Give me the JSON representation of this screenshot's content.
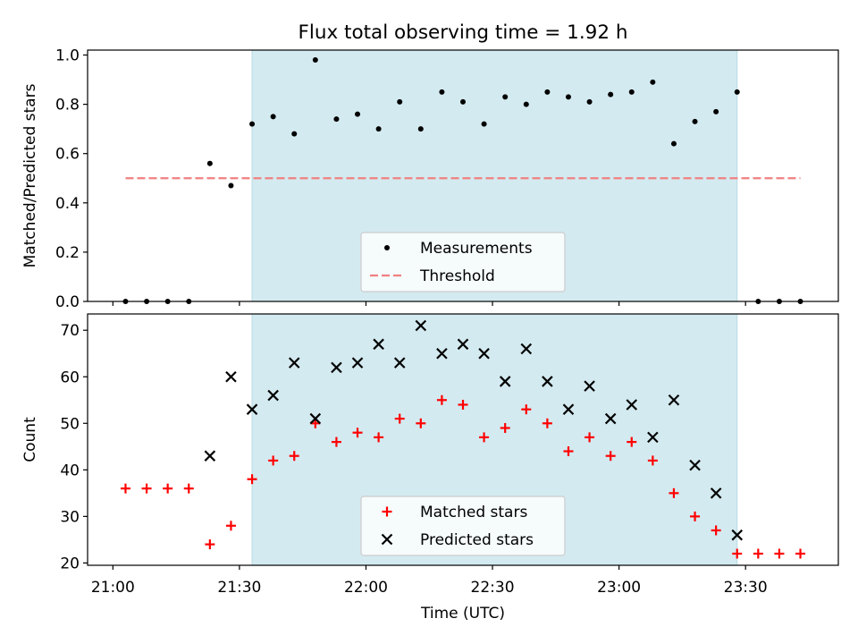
{
  "figure": {
    "title": "Flux total observing time = 1.92 h",
    "xlabel": "Time (UTC)"
  },
  "colors": {
    "band": "#d3eaf0",
    "measurements": "#000000",
    "threshold": "#f08080",
    "matched": "#ff0000",
    "predicted": "#000000"
  },
  "chart_data": [
    {
      "type": "scatter",
      "ylabel": "Matched/Predicted stars",
      "ylim": [
        0,
        1.02
      ],
      "yticks": [
        "0.0",
        "0.2",
        "0.4",
        "0.6",
        "0.8",
        "1.0"
      ],
      "xlim": [
        "20:54",
        "23:52"
      ],
      "xticks": [
        "21:00",
        "21:30",
        "22:00",
        "22:30",
        "23:00",
        "23:30"
      ],
      "shaded_interval": [
        "21:33",
        "23:28"
      ],
      "legend": {
        "placement": "lower center",
        "entries": [
          "Measurements",
          "Threshold"
        ]
      },
      "threshold": {
        "name": "Threshold",
        "y": 0.5,
        "x_range": [
          "21:03",
          "23:43"
        ]
      },
      "series": [
        {
          "name": "Measurements",
          "x": [
            "21:03",
            "21:08",
            "21:13",
            "21:18",
            "21:23",
            "21:28",
            "21:33",
            "21:38",
            "21:43",
            "21:48",
            "21:53",
            "21:58",
            "22:03",
            "22:08",
            "22:13",
            "22:18",
            "22:23",
            "22:28",
            "22:33",
            "22:38",
            "22:43",
            "22:48",
            "22:53",
            "22:58",
            "23:03",
            "23:08",
            "23:13",
            "23:18",
            "23:23",
            "23:28",
            "23:33",
            "23:38",
            "23:43"
          ],
          "y": [
            0.0,
            0.0,
            0.0,
            0.0,
            0.56,
            0.47,
            0.72,
            0.75,
            0.68,
            0.98,
            0.74,
            0.76,
            0.7,
            0.81,
            0.7,
            0.85,
            0.81,
            0.72,
            0.83,
            0.8,
            0.85,
            0.83,
            0.81,
            0.84,
            0.85,
            0.89,
            0.64,
            0.73,
            0.77,
            0.85,
            0.0,
            0.0,
            0.0
          ]
        }
      ]
    },
    {
      "type": "scatter",
      "ylabel": "Count",
      "ylim": [
        19.5,
        73.5
      ],
      "yticks": [
        "20",
        "30",
        "40",
        "50",
        "60",
        "70"
      ],
      "xlim": [
        "20:54",
        "23:52"
      ],
      "xticks": [
        "21:00",
        "21:30",
        "22:00",
        "22:30",
        "23:00",
        "23:30"
      ],
      "shaded_interval": [
        "21:33",
        "23:28"
      ],
      "legend": {
        "placement": "lower center",
        "entries": [
          "Matched stars",
          "Predicted stars"
        ]
      },
      "series": [
        {
          "name": "Matched stars",
          "marker": "+",
          "x": [
            "21:03",
            "21:08",
            "21:13",
            "21:18",
            "21:23",
            "21:28",
            "21:33",
            "21:38",
            "21:43",
            "21:48",
            "21:53",
            "21:58",
            "22:03",
            "22:08",
            "22:13",
            "22:18",
            "22:23",
            "22:28",
            "22:33",
            "22:38",
            "22:43",
            "22:48",
            "22:53",
            "22:58",
            "23:03",
            "23:08",
            "23:13",
            "23:18",
            "23:23",
            "23:28",
            "23:33",
            "23:38",
            "23:43"
          ],
          "y": [
            36,
            36,
            36,
            36,
            24,
            28,
            38,
            42,
            43,
            50,
            46,
            48,
            47,
            51,
            50,
            55,
            54,
            47,
            49,
            53,
            50,
            44,
            47,
            43,
            46,
            42,
            35,
            30,
            27,
            22,
            22,
            22,
            22
          ]
        },
        {
          "name": "Predicted stars",
          "marker": "x",
          "x": [
            "21:23",
            "21:28",
            "21:33",
            "21:38",
            "21:43",
            "21:48",
            "21:53",
            "21:58",
            "22:03",
            "22:08",
            "22:13",
            "22:18",
            "22:23",
            "22:28",
            "22:33",
            "22:38",
            "22:43",
            "22:48",
            "22:53",
            "22:58",
            "23:03",
            "23:08",
            "23:13",
            "23:18",
            "23:23",
            "23:28"
          ],
          "y": [
            43,
            60,
            53,
            56,
            63,
            51,
            62,
            63,
            67,
            63,
            71,
            65,
            67,
            65,
            59,
            66,
            59,
            53,
            58,
            51,
            54,
            47,
            55,
            41,
            35,
            26
          ]
        }
      ]
    }
  ]
}
